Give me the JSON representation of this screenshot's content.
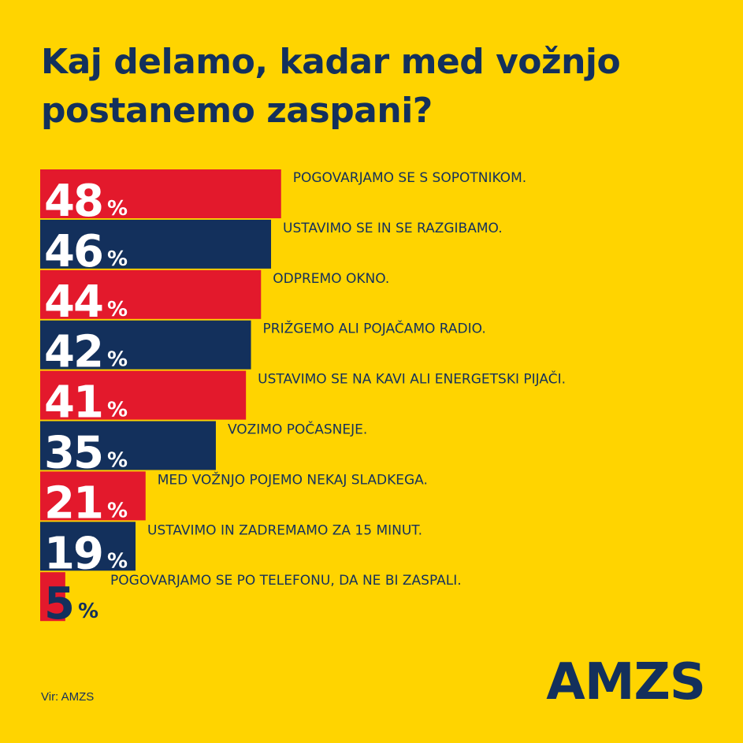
{
  "title_lines": [
    "Kaj delamo, kadar med vožnjo",
    "postanemo zaspani?"
  ],
  "source": "Vir: AMZS",
  "logo_text": "AMZS",
  "colors": {
    "background": "#FFD400",
    "red": "#E3192C",
    "navy": "#13305C"
  },
  "chart_data": {
    "type": "bar",
    "orientation": "horizontal",
    "unit": "%",
    "categories": [
      "POGOVARJAMO SE S SOPOTNIKOM.",
      "USTAVIMO SE IN SE RAZGIBAMO.",
      "ODPREMO OKNO.",
      "PRIŽGEMO ALI POJAČAMO RADIO.",
      "USTAVIMO SE NA KAVI ALI ENERGETSKI PIJAČI.",
      "VOZIMO POČASNEJE.",
      "MED VOŽNJO POJEMO NEKAJ SLADKEGA.",
      "USTAVIMO IN ZADREMAMO ZA 15 MINUT.",
      "POGOVARJAMO SE PO TELEFONU, DA NE BI ZASPALI."
    ],
    "values": [
      48,
      46,
      44,
      42,
      41,
      35,
      21,
      19,
      5
    ],
    "bar_colors": [
      "red",
      "navy",
      "red",
      "navy",
      "red",
      "navy",
      "red",
      "navy",
      "red"
    ],
    "value_scale_max": 100,
    "grid": false,
    "legend": "none"
  }
}
